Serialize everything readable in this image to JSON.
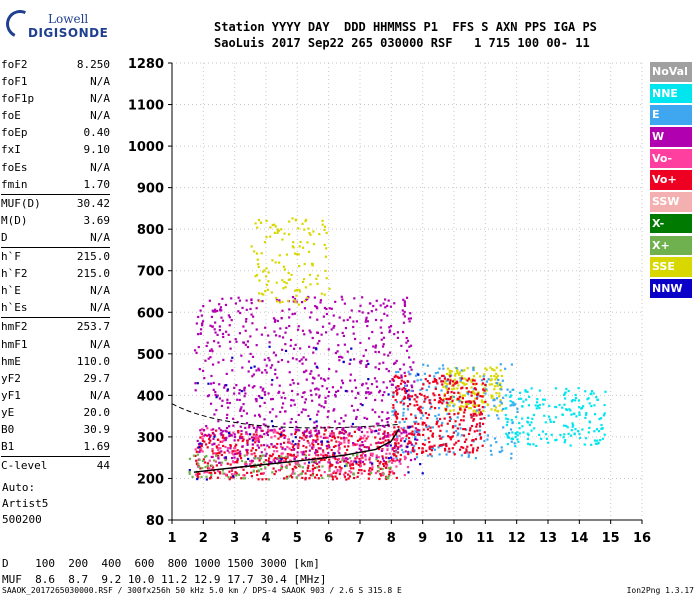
{
  "logo": {
    "line1": "Lowell",
    "line2": "DIGISONDE"
  },
  "header": {
    "line1": "Station YYYY DAY  DDD HHMMSS P1  FFS S AXN PPS IGA PS",
    "line2": "SaoLuis 2017 Sep22 265 030000 RSF   1 715 100 00- 11"
  },
  "params": {
    "group1": [
      [
        "foF2",
        "8.250"
      ],
      [
        "foF1",
        "N/A"
      ],
      [
        "foF1p",
        "N/A"
      ],
      [
        "foE",
        "N/A"
      ],
      [
        "foEp",
        "0.40"
      ],
      [
        "fxI",
        "9.10"
      ],
      [
        "foEs",
        "N/A"
      ],
      [
        "fmin",
        "1.70"
      ]
    ],
    "group2": [
      [
        "MUF(D)",
        "30.42"
      ],
      [
        "M(D)",
        "3.69"
      ],
      [
        "D",
        "N/A"
      ]
    ],
    "group3": [
      [
        "h`F",
        "215.0"
      ],
      [
        "h`F2",
        "215.0"
      ],
      [
        "h`E",
        "N/A"
      ],
      [
        "h`Es",
        "N/A"
      ]
    ],
    "group4": [
      [
        "hmF2",
        "253.7"
      ],
      [
        "hmF1",
        "N/A"
      ],
      [
        "hmE",
        "110.0"
      ],
      [
        "yF2",
        "29.7"
      ],
      [
        "yF1",
        "N/A"
      ],
      [
        "yE",
        "20.0"
      ],
      [
        "B0",
        "30.9"
      ],
      [
        "B1",
        "1.69"
      ]
    ],
    "group5": [
      [
        "C-level",
        "44"
      ]
    ]
  },
  "auto": {
    "l1": "Auto:",
    "l2": "Artist5",
    "l3": "500200"
  },
  "muf_table": {
    "d_row": "D    100  200  400  600  800 1000 1500 3000 [km]",
    "muf_row": "MUF  8.6  8.7  9.2 10.0 11.2 12.9 17.7 30.4 [MHz]"
  },
  "footer": {
    "left": "SAAOK_2017265030000.RSF / 300fx256h 50 kHz 5.0 km / DPS-4 SAAOK 903 / 2.6 S 315.8 E",
    "right": "Ion2Png 1.3.17"
  },
  "legend": [
    {
      "label": "NoVal",
      "color": "#a0a0a0"
    },
    {
      "label": "NNE",
      "color": "#00e5ee"
    },
    {
      "label": "E",
      "color": "#3fa7f0"
    },
    {
      "label": "W",
      "color": "#b000b0"
    },
    {
      "label": "Vo-",
      "color": "#ff3fa0"
    },
    {
      "label": "Vo+",
      "color": "#ee0022"
    },
    {
      "label": "SSW",
      "color": "#f4b0b0"
    },
    {
      "label": "X-",
      "color": "#007a00"
    },
    {
      "label": "X+",
      "color": "#6fb04f"
    },
    {
      "label": "SSE",
      "color": "#d8d800"
    },
    {
      "label": "NNW",
      "color": "#0a00c8"
    }
  ],
  "chart_data": {
    "type": "scatter",
    "xlim": [
      1,
      16
    ],
    "ylim": [
      80,
      1280
    ],
    "x_ticks": [
      "1",
      "2",
      "3",
      "4",
      "5",
      "6",
      "7",
      "8",
      "9",
      "10",
      "11",
      "12",
      "13",
      "14",
      "15",
      "16"
    ],
    "y_ticks": [
      "1280",
      "1100",
      "1000",
      "900",
      "800",
      "700",
      "600",
      "500",
      "400",
      "300",
      "200",
      "80"
    ],
    "y_tick_values": [
      1280,
      1100,
      1000,
      900,
      800,
      700,
      600,
      500,
      400,
      300,
      200,
      80
    ],
    "grid": true,
    "traces": [
      {
        "name": "",
        "mode": "F2 trace",
        "x": [
          1.7,
          2.5,
          3.5,
          4.5,
          5.5,
          6.5,
          7.5,
          8.0,
          8.25
        ],
        "y": [
          215,
          222,
          230,
          238,
          246,
          256,
          270,
          290,
          320
        ]
      }
    ],
    "clusters": [
      {
        "mode": "Vo+",
        "x": [
          1.7,
          8.3
        ],
        "y": [
          200,
          320
        ],
        "count": 500
      },
      {
        "mode": "Vo-",
        "x": [
          1.7,
          8.5
        ],
        "y": [
          210,
          330
        ],
        "count": 250
      },
      {
        "mode": "W",
        "x": [
          1.7,
          9.0
        ],
        "y": [
          240,
          330
        ],
        "count": 200
      },
      {
        "mode": "W",
        "x": [
          1.7,
          8.7
        ],
        "y": [
          400,
          640
        ],
        "count": 450
      },
      {
        "mode": "W",
        "x": [
          2.2,
          8.0
        ],
        "y": [
          310,
          420
        ],
        "count": 180
      },
      {
        "mode": "SSE",
        "x": [
          3.5,
          6.0
        ],
        "y": [
          620,
          830
        ],
        "count": 130
      },
      {
        "mode": "SSE",
        "x": [
          9.6,
          11.5
        ],
        "y": [
          360,
          470
        ],
        "count": 180
      },
      {
        "mode": "NNE",
        "x": [
          11.6,
          14.8
        ],
        "y": [
          280,
          420
        ],
        "count": 200
      },
      {
        "mode": "E",
        "x": [
          8.0,
          12.0
        ],
        "y": [
          250,
          480
        ],
        "count": 200
      },
      {
        "mode": "Vo+",
        "x": [
          8.0,
          11.0
        ],
        "y": [
          260,
          450
        ],
        "count": 350
      },
      {
        "mode": "NNW",
        "x": [
          1.5,
          9.0
        ],
        "y": [
          200,
          520
        ],
        "count": 70
      },
      {
        "mode": "X+",
        "x": [
          1.5,
          8.0
        ],
        "y": [
          200,
          260
        ],
        "count": 100
      }
    ]
  }
}
